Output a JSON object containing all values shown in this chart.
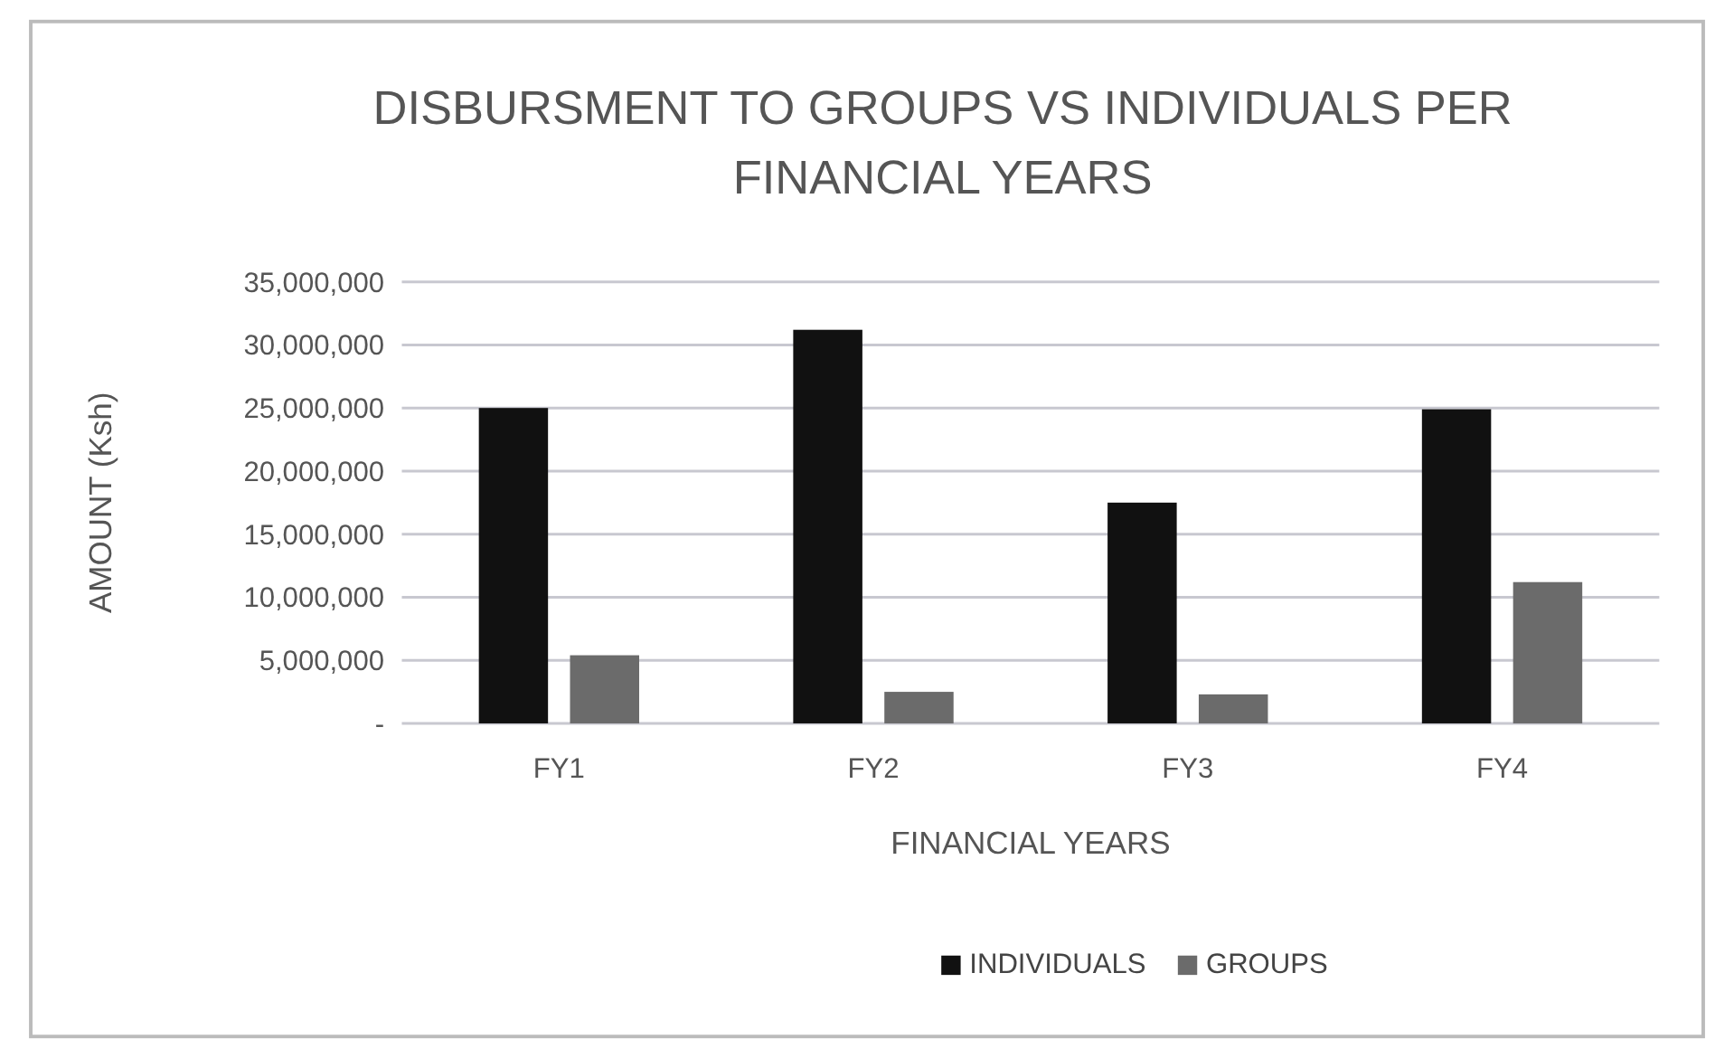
{
  "chart_data": {
    "type": "bar",
    "title": "DISBURSMENT TO GROUPS VS INDIVIDUALS PER FINANCIAL YEARS",
    "xlabel": "FINANCIAL YEARS",
    "ylabel": "AMOUNT (Ksh)",
    "categories": [
      "FY1",
      "FY2",
      "FY3",
      "FY4"
    ],
    "series": [
      {
        "name": "INDIVIDUALS",
        "color": "#111111",
        "values": [
          25000000,
          31200000,
          17500000,
          24900000
        ]
      },
      {
        "name": "GROUPS",
        "color": "#6b6b6b",
        "values": [
          5400000,
          2500000,
          2300000,
          11200000
        ]
      }
    ],
    "ylim": [
      0,
      35000000
    ],
    "yticks": [
      {
        "value": 0,
        "label": "-"
      },
      {
        "value": 5000000,
        "label": "5,000,000"
      },
      {
        "value": 10000000,
        "label": "10,000,000"
      },
      {
        "value": 15000000,
        "label": "15,000,000"
      },
      {
        "value": 20000000,
        "label": "20,000,000"
      },
      {
        "value": 25000000,
        "label": "25,000,000"
      },
      {
        "value": 30000000,
        "label": "30,000,000"
      },
      {
        "value": 35000000,
        "label": "35,000,000"
      }
    ],
    "grid": "y",
    "legend": "bottom"
  }
}
